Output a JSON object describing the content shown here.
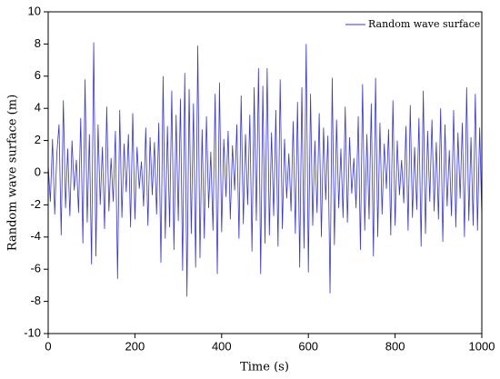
{
  "chart_data": {
    "type": "line",
    "x_label": "Time (s)",
    "y_label": "Random wave surface (m)",
    "xlim": [
      0,
      1000
    ],
    "ylim": [
      -10,
      10
    ],
    "xticks": [
      0,
      200,
      400,
      600,
      800,
      1000
    ],
    "yticks": [
      -10,
      -8,
      -6,
      -4,
      -2,
      0,
      2,
      4,
      6,
      8,
      10
    ],
    "legend": "upper right",
    "x": [
      0,
      5,
      10,
      15,
      20,
      25,
      30,
      35,
      40,
      45,
      50,
      55,
      60,
      65,
      70,
      75,
      80,
      85,
      90,
      95,
      100,
      105,
      110,
      115,
      120,
      125,
      130,
      135,
      140,
      145,
      150,
      155,
      160,
      165,
      170,
      175,
      180,
      185,
      190,
      195,
      200,
      205,
      210,
      215,
      220,
      225,
      230,
      235,
      240,
      245,
      250,
      255,
      260,
      265,
      270,
      275,
      280,
      285,
      290,
      295,
      300,
      305,
      310,
      315,
      320,
      325,
      330,
      335,
      340,
      345,
      350,
      355,
      360,
      365,
      370,
      375,
      380,
      385,
      390,
      395,
      400,
      405,
      410,
      415,
      420,
      425,
      430,
      435,
      440,
      445,
      450,
      455,
      460,
      465,
      470,
      475,
      480,
      485,
      490,
      495,
      500,
      505,
      510,
      515,
      520,
      525,
      530,
      535,
      540,
      545,
      550,
      555,
      560,
      565,
      570,
      575,
      580,
      585,
      590,
      595,
      600,
      605,
      610,
      615,
      620,
      625,
      630,
      635,
      640,
      645,
      650,
      655,
      660,
      665,
      670,
      675,
      680,
      685,
      690,
      695,
      700,
      705,
      710,
      715,
      720,
      725,
      730,
      735,
      740,
      745,
      750,
      755,
      760,
      765,
      770,
      775,
      780,
      785,
      790,
      795,
      800,
      805,
      810,
      815,
      820,
      825,
      830,
      835,
      840,
      845,
      850,
      855,
      860,
      865,
      870,
      875,
      880,
      885,
      890,
      895,
      900,
      905,
      910,
      915,
      920,
      925,
      930,
      935,
      940,
      945,
      950,
      955,
      960,
      965,
      970,
      975,
      980,
      985,
      990,
      995,
      1000
    ],
    "series": [
      {
        "name": "Random wave surface",
        "color": "#3333ee",
        "values": [
          0.5,
          -1.8,
          2.1,
          -2.6,
          1.2,
          3.0,
          -3.9,
          4.5,
          -2.2,
          1.5,
          -2.7,
          2.0,
          -1.1,
          0.8,
          -2.5,
          3.4,
          -4.4,
          5.8,
          -3.1,
          2.4,
          -5.7,
          8.1,
          -5.2,
          3.0,
          -2.0,
          1.6,
          -3.5,
          4.1,
          -2.4,
          0.9,
          -1.8,
          2.6,
          -6.6,
          3.9,
          -2.8,
          1.8,
          -1.2,
          2.4,
          -3.4,
          3.7,
          -2.9,
          1.6,
          -1.0,
          0.7,
          -2.1,
          2.8,
          -3.3,
          2.2,
          -1.4,
          1.9,
          -2.6,
          3.1,
          -5.6,
          6.0,
          -4.1,
          2.9,
          -3.4,
          5.1,
          -4.8,
          3.6,
          -3.0,
          4.6,
          -6.1,
          6.2,
          -7.7,
          5.2,
          -3.8,
          4.3,
          -5.9,
          7.9,
          -5.3,
          2.7,
          -4.1,
          3.5,
          -2.2,
          1.3,
          -3.6,
          4.9,
          -6.3,
          5.6,
          -3.7,
          2.1,
          -1.5,
          2.6,
          -2.9,
          1.7,
          -1.1,
          3.0,
          -4.1,
          4.8,
          -3.2,
          2.4,
          -2.0,
          3.6,
          -4.9,
          5.3,
          -3.0,
          6.5,
          -6.3,
          5.4,
          -4.4,
          6.5,
          -3.9,
          2.5,
          -2.7,
          3.9,
          -4.6,
          5.8,
          -3.5,
          2.1,
          -1.6,
          1.2,
          -2.4,
          3.2,
          -3.8,
          4.4,
          -5.9,
          5.3,
          -4.7,
          8.0,
          -6.2,
          4.9,
          -3.3,
          2.0,
          -2.5,
          3.7,
          -4.0,
          2.8,
          -1.7,
          2.3,
          -7.5,
          5.9,
          -4.5,
          3.3,
          -2.2,
          1.5,
          -2.8,
          4.1,
          -3.1,
          2.2,
          -1.3,
          0.9,
          -2.2,
          3.5,
          -4.8,
          5.5,
          -3.6,
          2.4,
          -2.9,
          4.3,
          -5.2,
          5.9,
          -4.0,
          3.1,
          -2.6,
          1.8,
          -1.0,
          2.7,
          -3.9,
          4.5,
          -3.3,
          2.0,
          -1.4,
          0.8,
          -1.9,
          2.9,
          -3.6,
          4.2,
          -2.8,
          1.6,
          -2.3,
          3.4,
          -4.6,
          5.1,
          -3.8,
          2.6,
          -1.8,
          3.3,
          -2.4,
          1.9,
          -2.9,
          4.0,
          -4.3,
          3.0,
          -2.1,
          1.4,
          -2.7,
          3.9,
          -3.4,
          2.5,
          -1.6,
          3.1,
          -4.0,
          5.3,
          -3.0,
          2.2,
          -3.3,
          4.9,
          -3.6,
          2.8,
          -2.8
        ]
      }
    ]
  }
}
